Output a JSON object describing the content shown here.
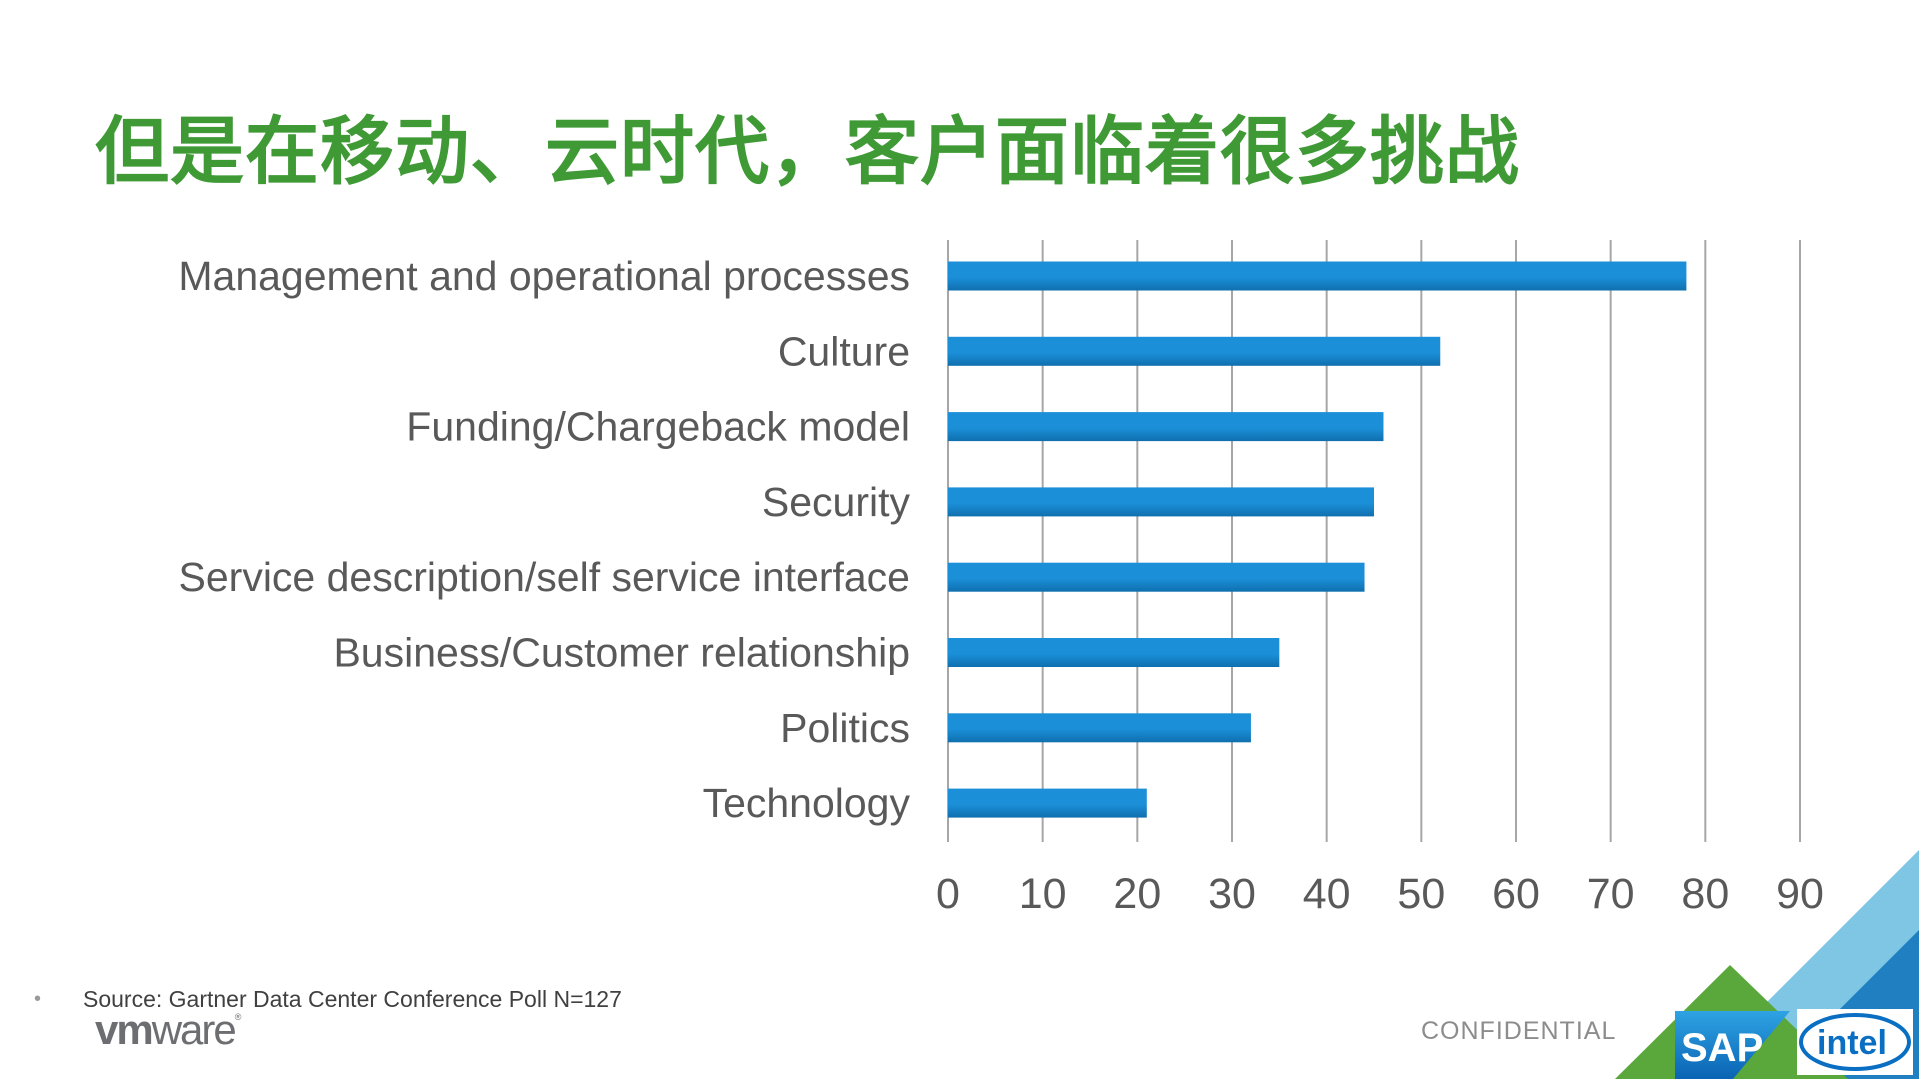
{
  "slide": {
    "title": "但是在移动、云时代，客户面临着很多挑战",
    "source": "Source: Gartner Data Center Conference Poll N=127",
    "bullet": "•",
    "confidential": "CONFIDENTIAL",
    "logos": {
      "vmware_bold": "vm",
      "vmware_light": "ware",
      "vmware_mark": "®",
      "sap": "SAP",
      "intel": "intel"
    }
  },
  "colors": {
    "title": "#3f9a36",
    "bar": "#1b8fd8",
    "bar_dark": "#0f6fae",
    "grid": "#a6a6a6",
    "green": "#5aa83c",
    "light_blue": "#7fc6e4",
    "blue": "#1f7fc0"
  },
  "chart_data": {
    "type": "bar",
    "orientation": "horizontal",
    "title": "",
    "xlabel": "",
    "ylabel": "",
    "categories": [
      "Management and operational processes",
      "Culture",
      "Funding/Chargeback model",
      "Security",
      "Service description/self service interface",
      "Business/Customer relationship",
      "Politics",
      "Technology"
    ],
    "values": [
      78,
      52,
      46,
      45,
      44,
      35,
      32,
      21
    ],
    "xlim": [
      0,
      90
    ],
    "ticks": [
      0,
      10,
      20,
      30,
      40,
      50,
      60,
      70,
      80,
      90
    ],
    "grid": true,
    "legend": "none"
  }
}
